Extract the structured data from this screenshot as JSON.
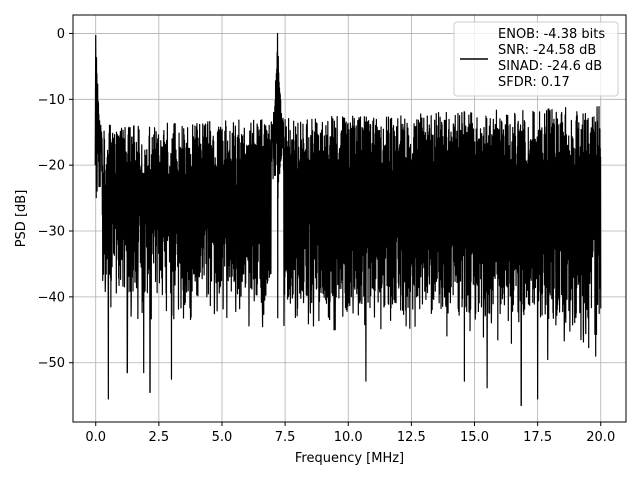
{
  "chart_data": {
    "type": "line",
    "title": "",
    "xlabel": "Frequency [MHz]",
    "ylabel": "PSD [dB]",
    "xlim": [
      -0.9,
      21.0
    ],
    "ylim": [
      -59.0,
      2.8
    ],
    "xticks": [
      0.0,
      2.5,
      5.0,
      7.5,
      10.0,
      12.5,
      15.0,
      17.5,
      20.0
    ],
    "xtick_labels": [
      "0.0",
      "2.5",
      "5.0",
      "7.5",
      "10.0",
      "12.5",
      "15.0",
      "17.5",
      "20.0"
    ],
    "yticks": [
      0,
      -10,
      -20,
      -30,
      -40,
      -50
    ],
    "ytick_labels": [
      "0",
      "−10",
      "−20",
      "−30",
      "−40",
      "−50"
    ],
    "grid": true,
    "legend_position": "top-right",
    "series": [
      {
        "name": "ENOB: -4.38 bits\nSNR: -24.58 dB\nSINAD: -24.6 dB\nSFDR: 0.17",
        "color": "#000000",
        "noise_band_top": [
          -14,
          -11
        ],
        "noise_band_bottom": [
          -39,
          -44
        ],
        "peaks": [
          {
            "x": 0.0,
            "y": -0.3
          },
          {
            "x": 7.2,
            "y": 0.0
          }
        ],
        "dips": [
          {
            "x": 0.5,
            "y": -55.5
          },
          {
            "x": 1.25,
            "y": -51.5
          },
          {
            "x": 1.9,
            "y": -51.5
          },
          {
            "x": 2.15,
            "y": -54.5
          },
          {
            "x": 3.0,
            "y": -52.5
          },
          {
            "x": 10.7,
            "y": -52.8
          },
          {
            "x": 14.6,
            "y": -52.8
          },
          {
            "x": 15.5,
            "y": -53.8
          },
          {
            "x": 16.85,
            "y": -56.5
          },
          {
            "x": 17.5,
            "y": -55.5
          },
          {
            "x": 17.9,
            "y": -49.5
          },
          {
            "x": 19.8,
            "y": -49.0
          }
        ]
      }
    ]
  }
}
